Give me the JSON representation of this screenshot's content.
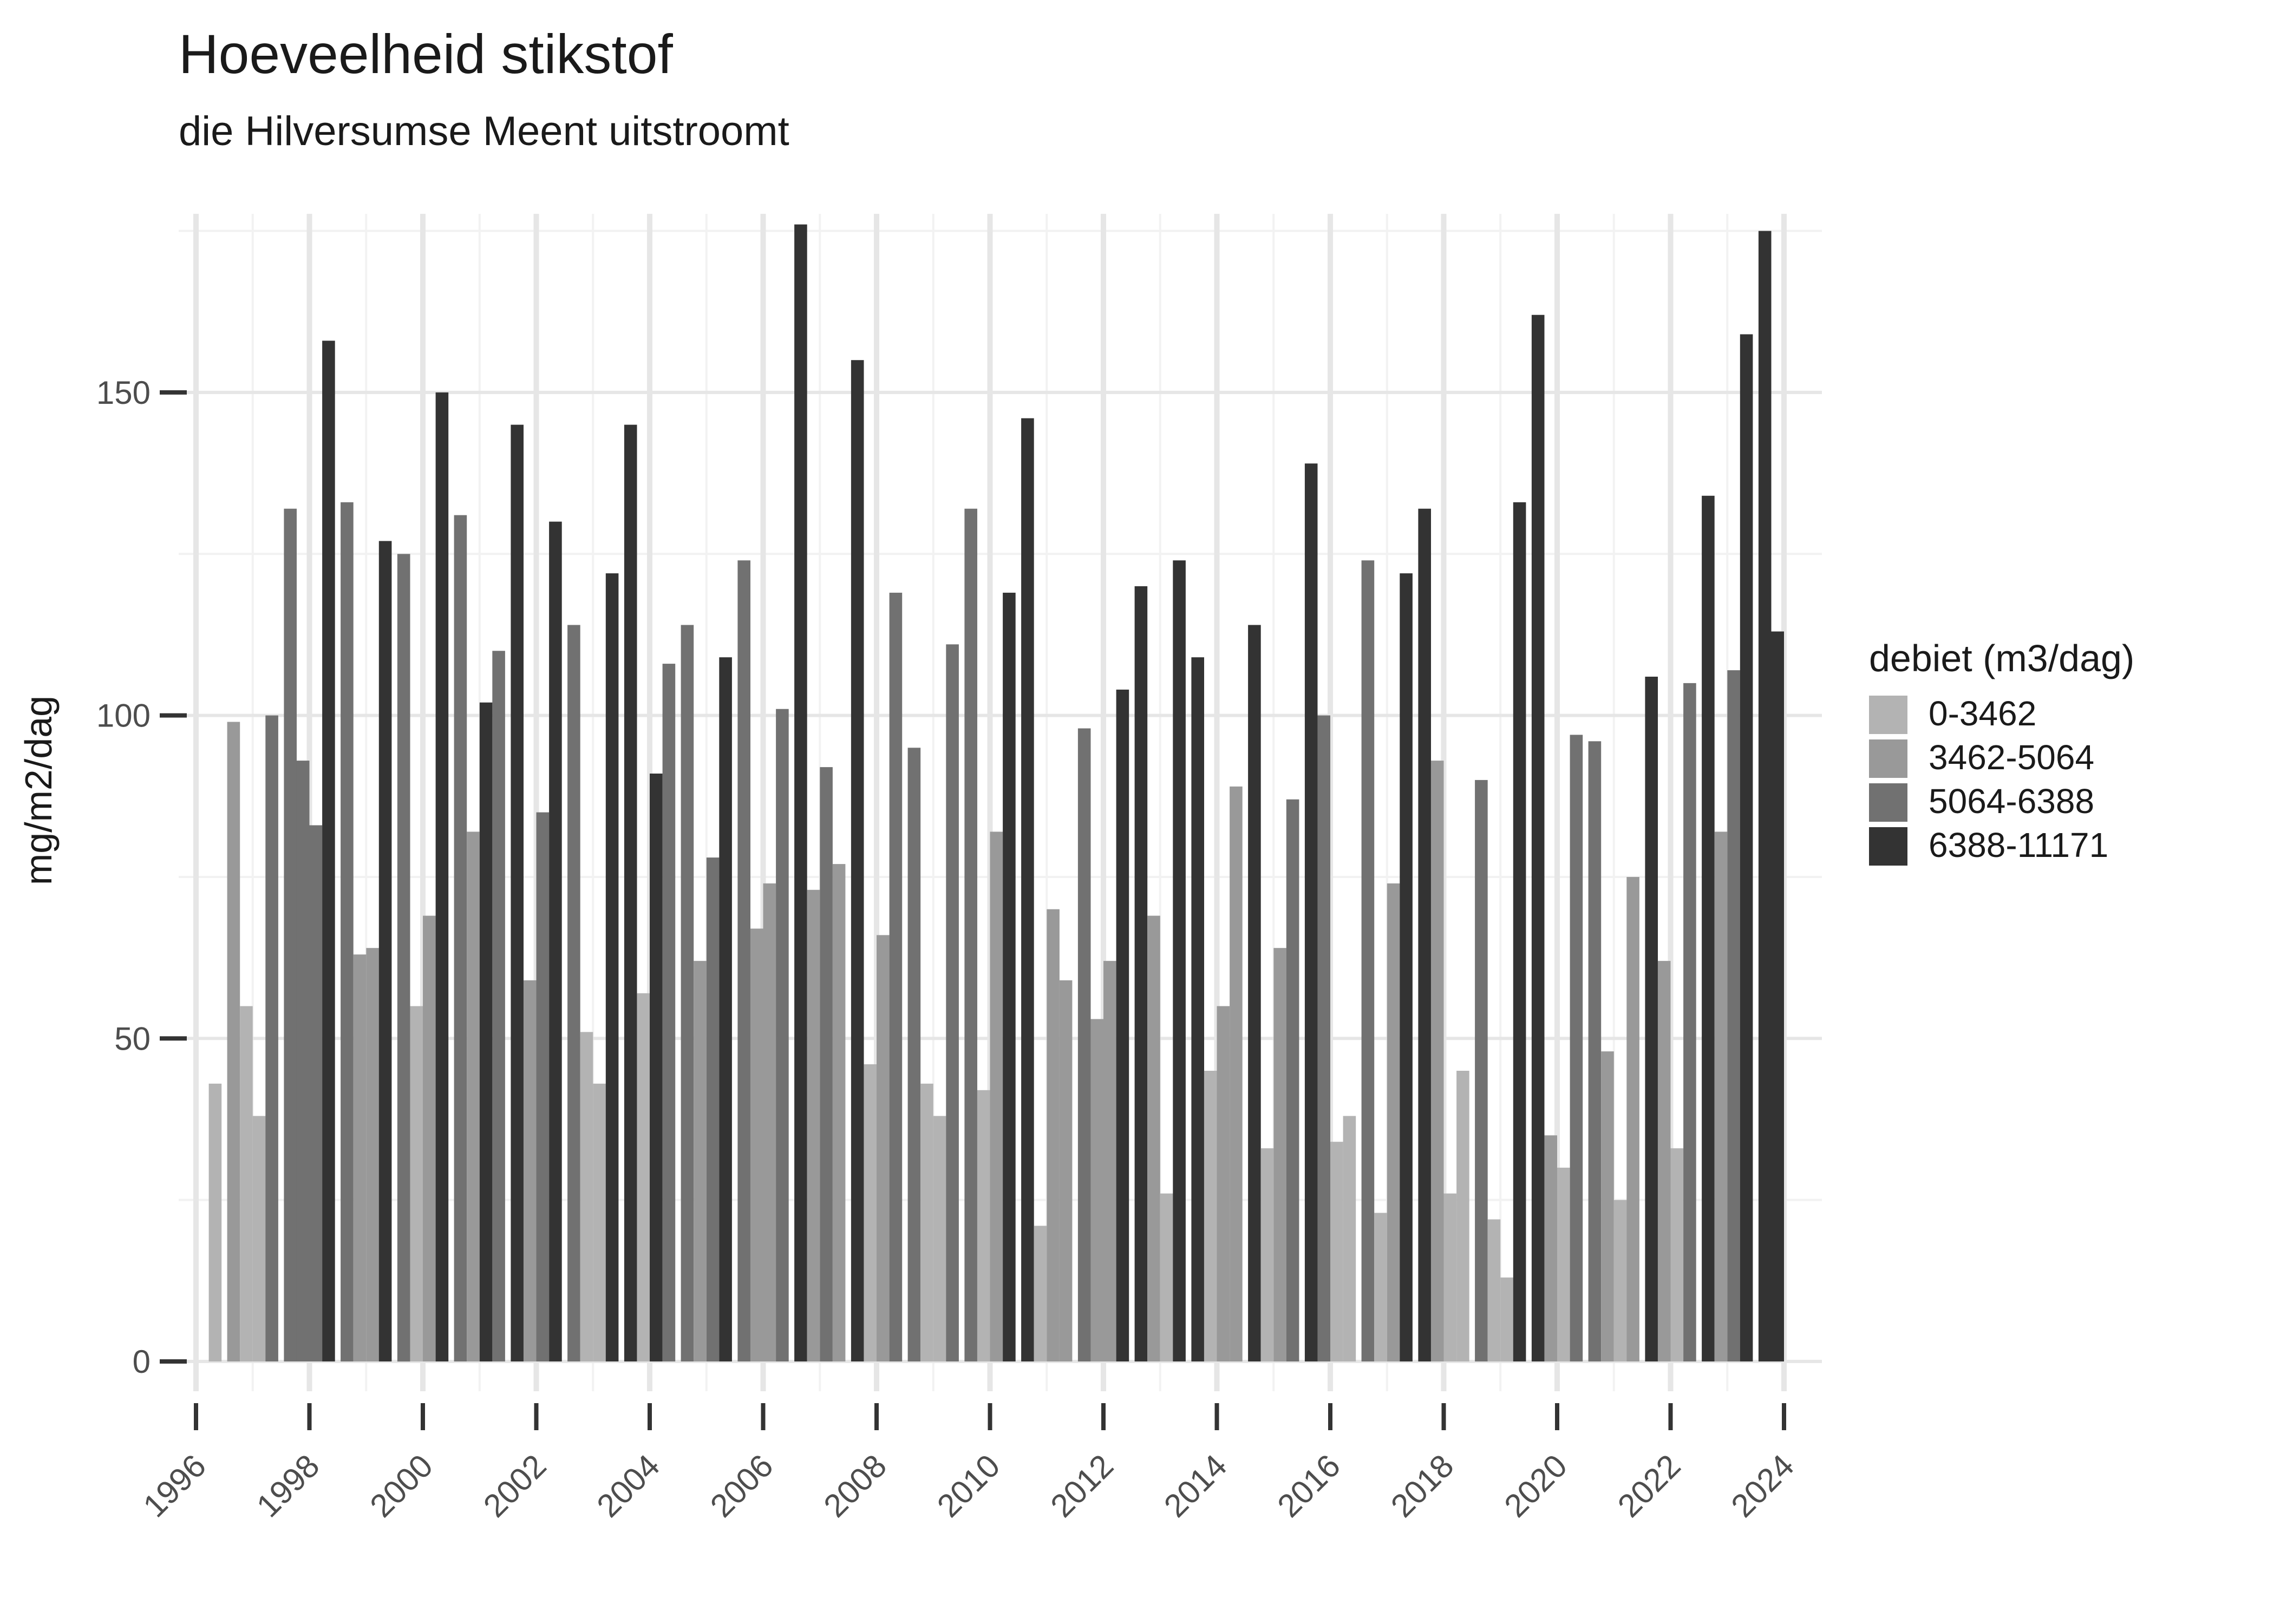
{
  "chart_data": {
    "type": "bar",
    "title": "Hoeveelheid stikstof",
    "subtitle": "die Hilversumse Meent uitstroomt",
    "ylabel": "mg/m2/dag",
    "xlabel": "",
    "ylim": [
      0,
      177.5
    ],
    "yticks": [
      0,
      50,
      100,
      150
    ],
    "y_minor_gridlines": [
      25,
      75,
      125,
      175
    ],
    "xticks": [
      1996,
      1998,
      2000,
      2002,
      2004,
      2006,
      2008,
      2010,
      2012,
      2014,
      2016,
      2018,
      2020,
      2022,
      2024
    ],
    "grid": "on",
    "legend_position": "right",
    "legend": {
      "title": "debiet (m3/dag)",
      "entries": [
        {
          "label": "0-3462",
          "color": "#b3b3b3"
        },
        {
          "label": "3462-5064",
          "color": "#999999"
        },
        {
          "label": "5064-6388",
          "color": "#717171"
        },
        {
          "label": "6388-11171",
          "color": "#333333"
        }
      ]
    },
    "bars_format": "[year, quarter, value_mg_m2_dag, legend_color_index]",
    "bars": [
      [
        1996,
        4,
        43,
        0
      ],
      [
        1997,
        1,
        99,
        1
      ],
      [
        1997,
        2,
        55,
        0
      ],
      [
        1997,
        3,
        38,
        0
      ],
      [
        1997,
        4,
        100,
        2
      ],
      [
        1998,
        1,
        132,
        2
      ],
      [
        1998,
        2,
        93,
        2
      ],
      [
        1998,
        3,
        83,
        2
      ],
      [
        1998,
        4,
        158,
        3
      ],
      [
        1999,
        1,
        133,
        2
      ],
      [
        1999,
        2,
        63,
        1
      ],
      [
        1999,
        3,
        64,
        1
      ],
      [
        1999,
        4,
        127,
        3
      ],
      [
        2000,
        1,
        125,
        2
      ],
      [
        2000,
        2,
        55,
        0
      ],
      [
        2000,
        3,
        69,
        1
      ],
      [
        2000,
        4,
        150,
        3
      ],
      [
        2001,
        1,
        131,
        2
      ],
      [
        2001,
        2,
        82,
        1
      ],
      [
        2001,
        3,
        102,
        3
      ],
      [
        2001,
        4,
        110,
        2
      ],
      [
        2002,
        1,
        145,
        3
      ],
      [
        2002,
        2,
        59,
        1
      ],
      [
        2002,
        3,
        85,
        2
      ],
      [
        2002,
        4,
        130,
        3
      ],
      [
        2003,
        1,
        114,
        2
      ],
      [
        2003,
        2,
        51,
        0
      ],
      [
        2003,
        3,
        43,
        0
      ],
      [
        2003,
        4,
        122,
        3
      ],
      [
        2004,
        1,
        145,
        3
      ],
      [
        2004,
        2,
        57,
        0
      ],
      [
        2004,
        3,
        91,
        3
      ],
      [
        2004,
        4,
        108,
        2
      ],
      [
        2005,
        1,
        114,
        2
      ],
      [
        2005,
        2,
        62,
        1
      ],
      [
        2005,
        3,
        78,
        2
      ],
      [
        2005,
        4,
        109,
        3
      ],
      [
        2006,
        1,
        124,
        2
      ],
      [
        2006,
        2,
        67,
        1
      ],
      [
        2006,
        3,
        74,
        1
      ],
      [
        2006,
        4,
        101,
        2
      ],
      [
        2007,
        1,
        176,
        3
      ],
      [
        2007,
        2,
        73,
        1
      ],
      [
        2007,
        3,
        92,
        2
      ],
      [
        2007,
        4,
        77,
        1
      ],
      [
        2008,
        1,
        155,
        3
      ],
      [
        2008,
        2,
        46,
        0
      ],
      [
        2008,
        3,
        66,
        1
      ],
      [
        2008,
        4,
        119,
        2
      ],
      [
        2009,
        1,
        95,
        2
      ],
      [
        2009,
        2,
        43,
        0
      ],
      [
        2009,
        3,
        38,
        0
      ],
      [
        2009,
        4,
        111,
        2
      ],
      [
        2010,
        1,
        132,
        2
      ],
      [
        2010,
        2,
        42,
        0
      ],
      [
        2010,
        3,
        82,
        1
      ],
      [
        2010,
        4,
        119,
        3
      ],
      [
        2011,
        1,
        146,
        3
      ],
      [
        2011,
        2,
        21,
        0
      ],
      [
        2011,
        3,
        70,
        1
      ],
      [
        2011,
        4,
        59,
        1
      ],
      [
        2012,
        1,
        98,
        2
      ],
      [
        2012,
        2,
        53,
        1
      ],
      [
        2012,
        3,
        62,
        1
      ],
      [
        2012,
        4,
        104,
        3
      ],
      [
        2013,
        1,
        120,
        3
      ],
      [
        2013,
        2,
        69,
        1
      ],
      [
        2013,
        3,
        26,
        0
      ],
      [
        2013,
        4,
        124,
        3
      ],
      [
        2014,
        1,
        109,
        3
      ],
      [
        2014,
        2,
        45,
        0
      ],
      [
        2014,
        3,
        55,
        1
      ],
      [
        2014,
        4,
        89,
        1
      ],
      [
        2015,
        1,
        114,
        3
      ],
      [
        2015,
        2,
        33,
        0
      ],
      [
        2015,
        3,
        64,
        1
      ],
      [
        2015,
        4,
        87,
        2
      ],
      [
        2016,
        1,
        139,
        3
      ],
      [
        2016,
        2,
        100,
        2
      ],
      [
        2016,
        3,
        34,
        0
      ],
      [
        2016,
        4,
        38,
        0
      ],
      [
        2017,
        1,
        124,
        2
      ],
      [
        2017,
        2,
        23,
        0
      ],
      [
        2017,
        3,
        74,
        1
      ],
      [
        2017,
        4,
        122,
        3
      ],
      [
        2018,
        1,
        132,
        3
      ],
      [
        2018,
        2,
        93,
        1
      ],
      [
        2018,
        3,
        26,
        0
      ],
      [
        2018,
        4,
        45,
        0
      ],
      [
        2019,
        1,
        90,
        2
      ],
      [
        2019,
        2,
        22,
        0
      ],
      [
        2019,
        3,
        13,
        0
      ],
      [
        2019,
        4,
        133,
        3
      ],
      [
        2020,
        1,
        162,
        3
      ],
      [
        2020,
        2,
        35,
        1
      ],
      [
        2020,
        3,
        30,
        0
      ],
      [
        2020,
        4,
        97,
        2
      ],
      [
        2021,
        1,
        96,
        2
      ],
      [
        2021,
        2,
        48,
        1
      ],
      [
        2021,
        3,
        25,
        0
      ],
      [
        2021,
        4,
        75,
        1
      ],
      [
        2022,
        1,
        106,
        3
      ],
      [
        2022,
        2,
        62,
        1
      ],
      [
        2022,
        3,
        33,
        0
      ],
      [
        2022,
        4,
        105,
        2
      ],
      [
        2023,
        1,
        134,
        3
      ],
      [
        2023,
        2,
        82,
        1
      ],
      [
        2023,
        3,
        107,
        2
      ],
      [
        2023,
        4,
        159,
        3
      ],
      [
        2024,
        1,
        175,
        3
      ],
      [
        2024,
        2,
        113,
        3
      ]
    ],
    "colors": {
      "text_title": "#1a1a1a",
      "text_axis": "#4d4d4d",
      "grid_major": "#e6e6e6",
      "grid_minor": "#f2f2f2",
      "tick": "#333333",
      "background": "#ffffff"
    }
  }
}
